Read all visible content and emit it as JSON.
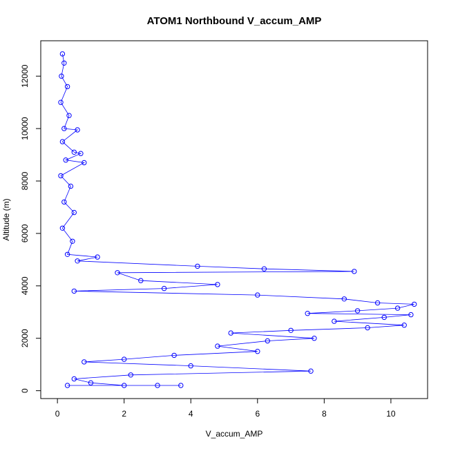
{
  "chart_data": {
    "type": "scatter",
    "title": "ATOM1 Northbound V_accum_AMP",
    "xlabel": "V_accum_AMP",
    "ylabel": "Altitude (m)",
    "xlim": [
      -0.5,
      11.1
    ],
    "ylim": [
      -300,
      13350
    ],
    "xticks": [
      "0",
      "2",
      "4",
      "6",
      "8",
      "10"
    ],
    "yticks": [
      "0",
      "2000",
      "4000",
      "6000",
      "8000",
      "10000",
      "12000"
    ],
    "grid": false,
    "legend": "none",
    "marker": "open-circle",
    "connected": true,
    "color": "#0000ff",
    "series": [
      {
        "points": [
          [
            0.15,
            12850
          ],
          [
            0.2,
            12500
          ],
          [
            0.12,
            12000
          ],
          [
            0.3,
            11600
          ],
          [
            0.1,
            11000
          ],
          [
            0.35,
            10500
          ],
          [
            0.2,
            10000
          ],
          [
            0.6,
            9950
          ],
          [
            0.15,
            9500
          ],
          [
            0.5,
            9100
          ],
          [
            0.7,
            9050
          ],
          [
            0.25,
            8800
          ],
          [
            0.8,
            8700
          ],
          [
            0.1,
            8200
          ],
          [
            0.4,
            7800
          ],
          [
            0.2,
            7200
          ],
          [
            0.5,
            6800
          ],
          [
            0.15,
            6200
          ],
          [
            0.45,
            5700
          ],
          [
            0.3,
            5200
          ],
          [
            1.2,
            5100
          ],
          [
            0.6,
            4950
          ],
          [
            4.2,
            4750
          ],
          [
            6.2,
            4650
          ],
          [
            8.9,
            4550
          ],
          [
            1.8,
            4500
          ],
          [
            2.5,
            4200
          ],
          [
            4.8,
            4050
          ],
          [
            3.2,
            3900
          ],
          [
            0.5,
            3800
          ],
          [
            6.0,
            3650
          ],
          [
            8.6,
            3500
          ],
          [
            9.6,
            3350
          ],
          [
            10.7,
            3300
          ],
          [
            10.2,
            3150
          ],
          [
            9.0,
            3050
          ],
          [
            7.5,
            2950
          ],
          [
            10.6,
            2900
          ],
          [
            9.8,
            2800
          ],
          [
            8.3,
            2650
          ],
          [
            10.4,
            2500
          ],
          [
            9.3,
            2400
          ],
          [
            7.0,
            2300
          ],
          [
            5.2,
            2200
          ],
          [
            7.7,
            2000
          ],
          [
            6.3,
            1900
          ],
          [
            4.8,
            1700
          ],
          [
            6.0,
            1500
          ],
          [
            3.5,
            1350
          ],
          [
            2.0,
            1200
          ],
          [
            0.8,
            1100
          ],
          [
            4.0,
            950
          ],
          [
            7.6,
            750
          ],
          [
            2.2,
            600
          ],
          [
            0.5,
            450
          ],
          [
            1.0,
            300
          ],
          [
            2.0,
            200
          ],
          [
            3.0,
            200
          ],
          [
            3.7,
            200
          ],
          [
            0.3,
            200
          ]
        ]
      }
    ]
  }
}
